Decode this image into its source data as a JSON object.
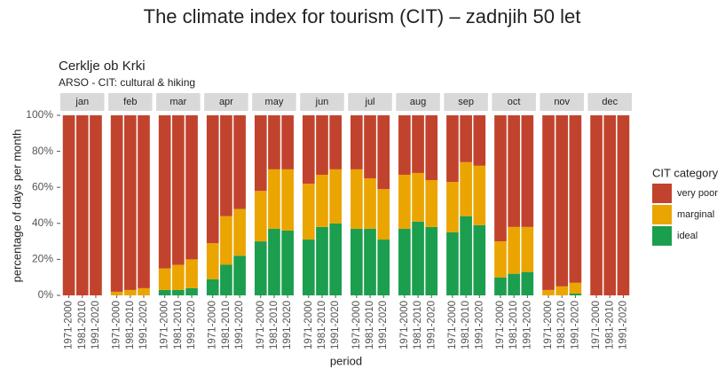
{
  "heading": "The climate index for tourism (CIT) – zadnjih 50 let",
  "chart_data": {
    "type": "stacked_bar",
    "title": "Cerklje ob Krki",
    "subtitle": "ARSO - CIT: cultural & hiking",
    "x_label": "period",
    "y_label": "percentage of days per month",
    "legend_title": "CIT category",
    "legend_position": "right",
    "facets": [
      "jan",
      "feb",
      "mar",
      "apr",
      "may",
      "jun",
      "jul",
      "aug",
      "sep",
      "oct",
      "nov",
      "dec"
    ],
    "categories": [
      "1971-2000",
      "1981-2010",
      "1991-2020"
    ],
    "ylim": [
      0,
      100
    ],
    "yticks": [
      {
        "value": 0,
        "label": "0%"
      },
      {
        "value": 20,
        "label": "20%"
      },
      {
        "value": 40,
        "label": "40%"
      },
      {
        "value": 60,
        "label": "60%"
      },
      {
        "value": 80,
        "label": "80%"
      },
      {
        "value": 100,
        "label": "100%"
      }
    ],
    "series": [
      {
        "name": "very poor",
        "color": "#c2432d",
        "values": [
          [
            100,
            100,
            100
          ],
          [
            98,
            97,
            96
          ],
          [
            85,
            83,
            80
          ],
          [
            71,
            56,
            52
          ],
          [
            42,
            30,
            30
          ],
          [
            38,
            33,
            30
          ],
          [
            30,
            35,
            41
          ],
          [
            33,
            32,
            36
          ],
          [
            37,
            26,
            28
          ],
          [
            70,
            62,
            62
          ],
          [
            97,
            95,
            93
          ],
          [
            100,
            100,
            100
          ]
        ]
      },
      {
        "name": "marginal",
        "color": "#eaa500",
        "values": [
          [
            0,
            0,
            0
          ],
          [
            2,
            3,
            4
          ],
          [
            12,
            14,
            16
          ],
          [
            20,
            27,
            26
          ],
          [
            28,
            33,
            34
          ],
          [
            31,
            29,
            30
          ],
          [
            33,
            28,
            28
          ],
          [
            30,
            27,
            26
          ],
          [
            28,
            30,
            33
          ],
          [
            20,
            26,
            25
          ],
          [
            3,
            5,
            6
          ],
          [
            0,
            0,
            0
          ]
        ]
      },
      {
        "name": "ideal",
        "color": "#1c9e4f",
        "values": [
          [
            0,
            0,
            0
          ],
          [
            0,
            0,
            0
          ],
          [
            3,
            3,
            4
          ],
          [
            9,
            17,
            22
          ],
          [
            30,
            37,
            36
          ],
          [
            31,
            38,
            40
          ],
          [
            37,
            37,
            31
          ],
          [
            37,
            41,
            38
          ],
          [
            35,
            44,
            39
          ],
          [
            10,
            12,
            13
          ],
          [
            0,
            0,
            1
          ],
          [
            0,
            0,
            0
          ]
        ]
      }
    ]
  }
}
